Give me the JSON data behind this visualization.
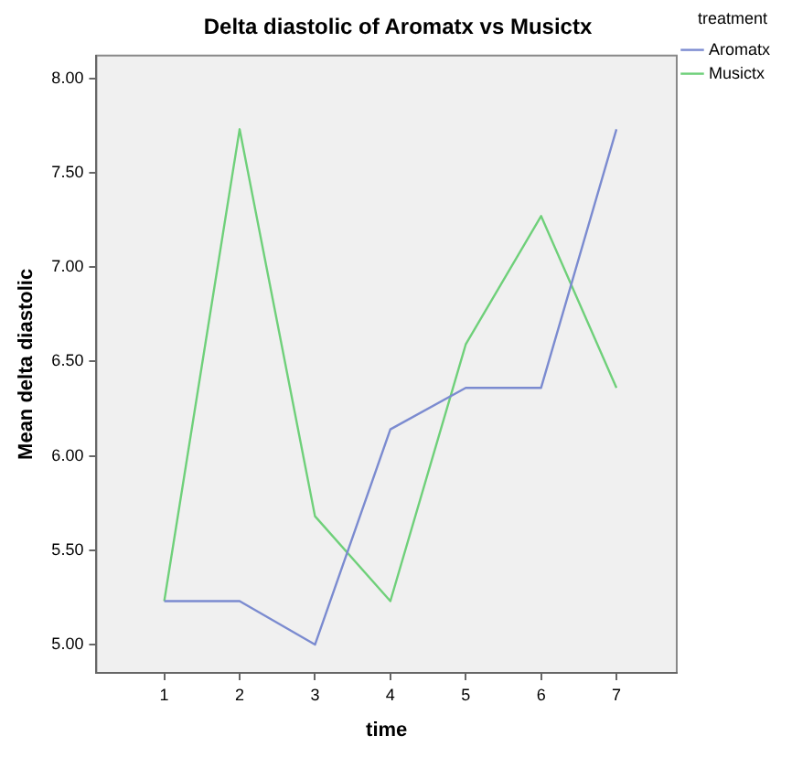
{
  "chart_data": {
    "type": "line",
    "title": "Delta diastolic of Aromatx vs Musictx",
    "xlabel": "time",
    "ylabel": "Mean delta diastolic",
    "legend_title": "treatment",
    "x": [
      1,
      2,
      3,
      4,
      5,
      6,
      7
    ],
    "series": [
      {
        "name": "Aromatx",
        "color": "#7b8bd0",
        "values": [
          5.23,
          5.23,
          5.0,
          6.14,
          6.36,
          6.36,
          7.73
        ]
      },
      {
        "name": "Musictx",
        "color": "#6fd07a",
        "values": [
          5.23,
          7.73,
          5.68,
          5.23,
          6.59,
          7.27,
          6.36
        ]
      }
    ],
    "xlim": [
      0.1,
      7.8
    ],
    "xticks": [
      1,
      2,
      3,
      4,
      5,
      6,
      7
    ],
    "ylim": [
      4.85,
      8.12
    ],
    "yticks": [
      {
        "value": 5,
        "label": "5.00"
      },
      {
        "value": 5.5,
        "label": "5.50"
      },
      {
        "value": 6,
        "label": "6.00"
      },
      {
        "value": 6.5,
        "label": "6.50"
      },
      {
        "value": 7,
        "label": "7.00"
      },
      {
        "value": 7.5,
        "label": "7.50"
      },
      {
        "value": 8,
        "label": "8.00"
      }
    ],
    "grid": false,
    "legend": "top right",
    "marker": "none",
    "line_style": "solid"
  }
}
